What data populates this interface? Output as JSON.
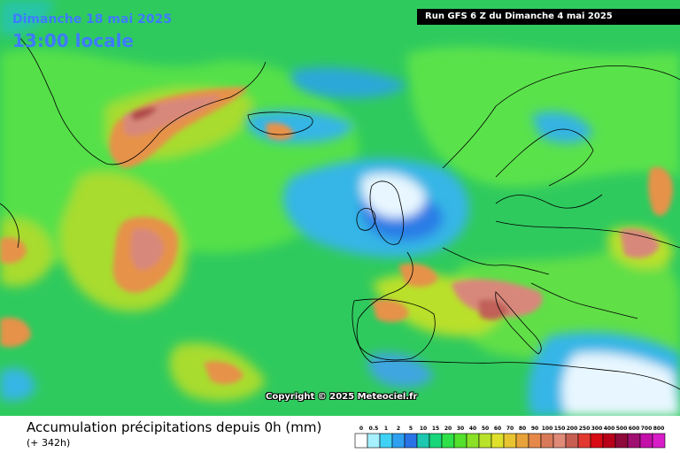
{
  "header": {
    "date": "Dimanche 18 mai 2025",
    "time": "13:00 locale",
    "run": "Run GFS 6 Z du Dimanche 4 mai 2025"
  },
  "copyright": "Copyright © 2025 Meteociel.fr",
  "legend": {
    "title": "Accumulation précipitations depuis 0h (mm)",
    "subtitle": "(+ 342h)",
    "thresholds": [
      "0",
      "0.5",
      "1",
      "2",
      "5",
      "10",
      "15",
      "20",
      "30",
      "40",
      "50",
      "60",
      "70",
      "80",
      "90",
      "100",
      "150",
      "200",
      "250",
      "300",
      "400",
      "500",
      "600",
      "700",
      "800"
    ],
    "colors": [
      "#ffffff",
      "#a6f0ff",
      "#3fd2f5",
      "#2ea0ef",
      "#2a73e6",
      "#1dc7b0",
      "#19d67a",
      "#2fe048",
      "#54e02c",
      "#8be028",
      "#b9e22c",
      "#dfe02c",
      "#e8c430",
      "#e8a23a",
      "#e6884a",
      "#d87a5a",
      "#e08a78",
      "#c75e52",
      "#e23a30",
      "#d80b14",
      "#b80018",
      "#8e0a3a",
      "#a01070",
      "#c210a8",
      "#d81ec8"
    ]
  },
  "map_colors": {
    "ocean_base": "#2fca5e",
    "light_green": "#57e24a",
    "yellow_green": "#a8dc2e",
    "orange": "#e6924a",
    "salmon": "#d8887a",
    "dark_red": "#c0504a",
    "teal": "#27c4a8",
    "cyan": "#34b6e6",
    "blue": "#2a7de6",
    "white": "#e8f7ff"
  }
}
